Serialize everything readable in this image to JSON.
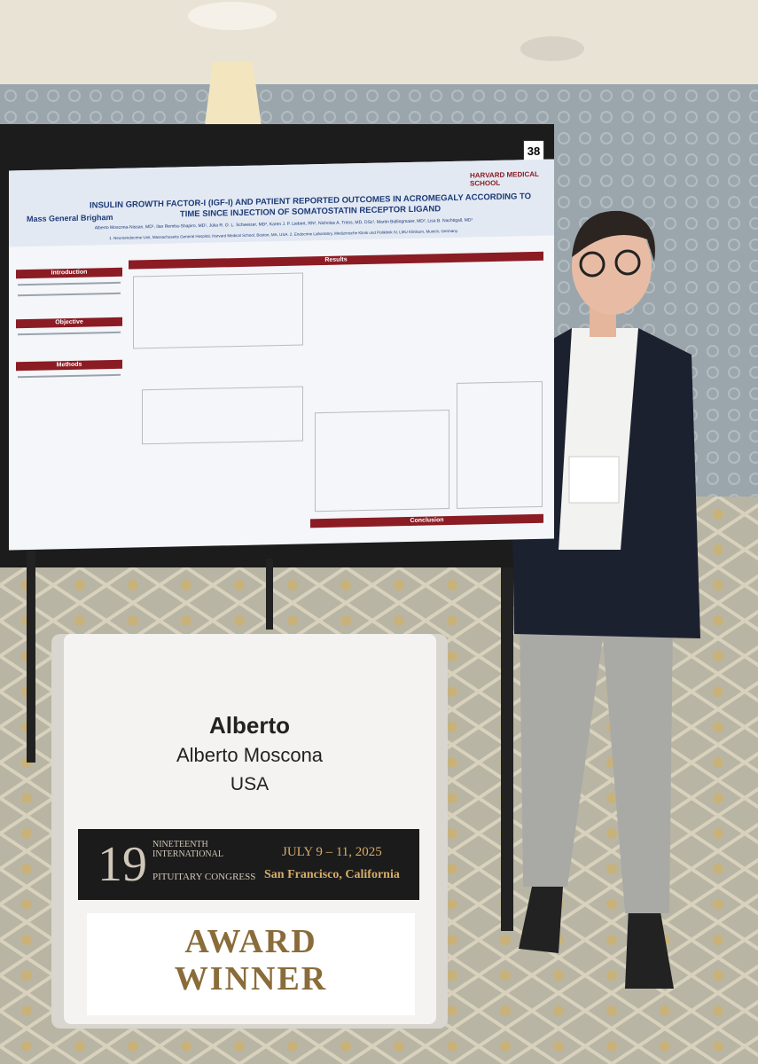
{
  "poster": {
    "number": "38",
    "logo_left": "Mass General Brigham",
    "logo_right": "HARVARD MEDICAL SCHOOL",
    "title": "INSULIN GROWTH FACTOR-I (IGF-I) AND PATIENT REPORTED OUTCOMES IN ACROMEGALY ACCORDING TO TIME SINCE INJECTION OF SOMATOSTATIN RECEPTOR LIGAND",
    "authors": "Alberto Moscona-Nissan, MD¹, Ilan Remba-Shapiro, MD¹, Júlia R. O. L. Schweizer, MD², Karen J. P. Liebert, RN¹, Nicholas A. Tritos, MD, DSc¹, Martin Bidlingmaier, MD², Lisa B. Nachtigall, MD¹",
    "affiliations": "1. Neuroendocrine Unit, Massachusetts General Hospital, Harvard Medical School, Boston, MA, USA. 2. Endocrine Laboratory, Medizinische Klinik und Poliklinik IV, LMU Klinikum, Munich, Germany.",
    "sections": [
      "Introduction",
      "Objective",
      "Methods",
      "Results",
      "Conclusion"
    ]
  },
  "badge": {
    "first_name": "Alberto",
    "full_name": "Alberto Moscona",
    "country": "USA",
    "ordinal": "19",
    "ordinal_text": "NINETEENTH INTERNATIONAL",
    "congress": "PITUITARY CONGRESS",
    "dates": "JULY 9 – 11, 2025",
    "location": "San Francisco, California",
    "ribbon": [
      "AWARD",
      "WINNER"
    ]
  }
}
